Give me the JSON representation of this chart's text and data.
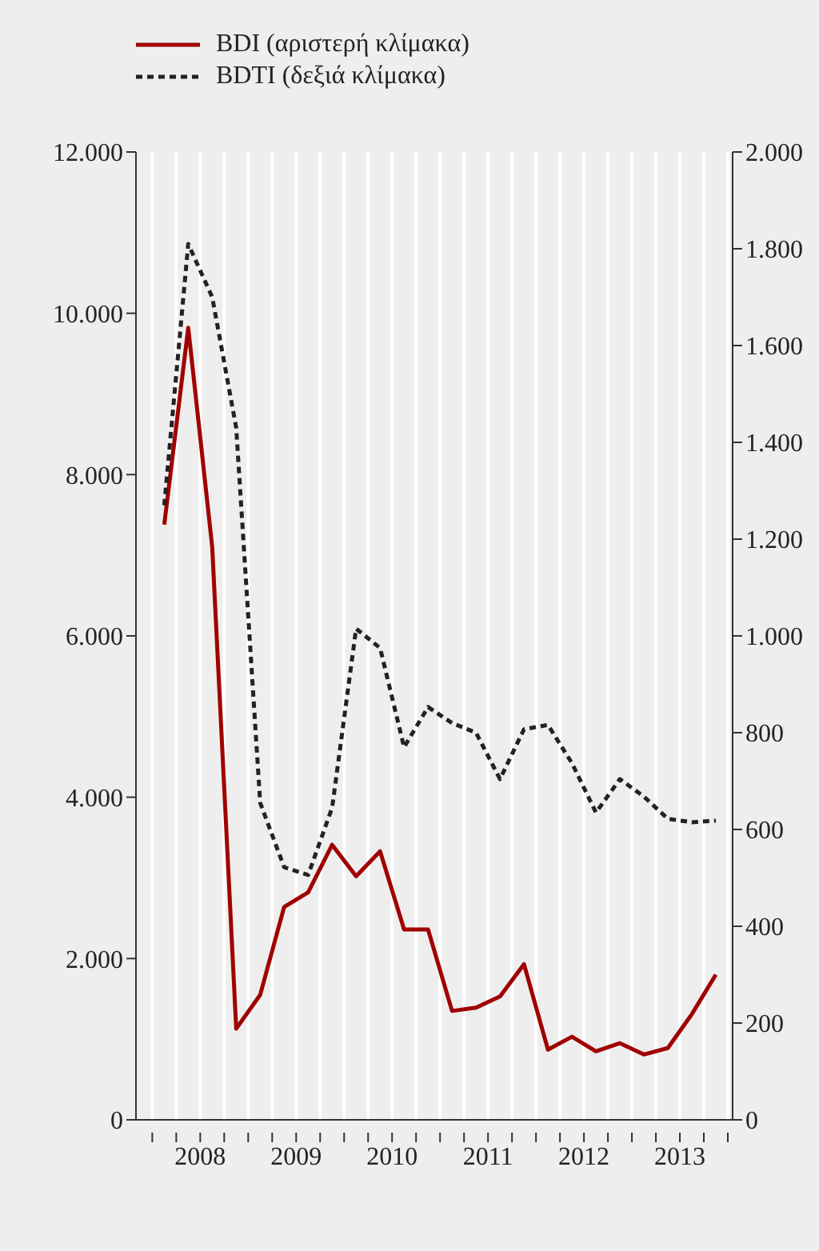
{
  "chart_data": {
    "type": "line",
    "x": [
      2008.125,
      2008.375,
      2008.625,
      2008.875,
      2009.125,
      2009.375,
      2009.625,
      2009.875,
      2010.125,
      2010.375,
      2010.625,
      2010.875,
      2011.125,
      2011.375,
      2011.625,
      2011.875,
      2012.125,
      2012.375,
      2012.625,
      2012.875,
      2013.125,
      2013.375,
      2013.625,
      2013.875
    ],
    "series": [
      {
        "name": "BDI (αριστερή κλίμακα)",
        "color": "#a00000",
        "line_style": "solid",
        "values": [
          7380,
          9820,
          7100,
          1130,
          1550,
          2640,
          2820,
          3410,
          3020,
          3330,
          2360,
          2360,
          1350,
          1390,
          1530,
          1930,
          870,
          1030,
          850,
          950,
          810,
          890,
          1310,
          1800
        ]
      },
      {
        "name": "BDTI (δεξιά κλίμακα)",
        "color": "#222222",
        "line_style": "dashed",
        "axis": "y2",
        "values": [
          1270,
          1810,
          1700,
          1430,
          655,
          522,
          506,
          645,
          1015,
          975,
          770,
          853,
          820,
          800,
          704,
          807,
          816,
          737,
          635,
          704,
          668,
          622,
          615,
          618
        ]
      }
    ],
    "xlim": [
      2007.83,
      2014.05
    ],
    "xticks": [
      {
        "value": 2008,
        "label": null
      },
      {
        "value": 2008.25,
        "label": null
      },
      {
        "value": 2008.5,
        "label": "2008"
      },
      {
        "value": 2008.75,
        "label": null
      },
      {
        "value": 2009,
        "label": null
      },
      {
        "value": 2009.25,
        "label": null
      },
      {
        "value": 2009.5,
        "label": "2009"
      },
      {
        "value": 2009.75,
        "label": null
      },
      {
        "value": 2010,
        "label": null
      },
      {
        "value": 2010.25,
        "label": null
      },
      {
        "value": 2010.5,
        "label": "2010"
      },
      {
        "value": 2010.75,
        "label": null
      },
      {
        "value": 2011,
        "label": null
      },
      {
        "value": 2011.25,
        "label": null
      },
      {
        "value": 2011.5,
        "label": "2011"
      },
      {
        "value": 2011.75,
        "label": null
      },
      {
        "value": 2012,
        "label": null
      },
      {
        "value": 2012.25,
        "label": null
      },
      {
        "value": 2012.5,
        "label": "2012"
      },
      {
        "value": 2012.75,
        "label": null
      },
      {
        "value": 2013,
        "label": null
      },
      {
        "value": 2013.25,
        "label": null
      },
      {
        "value": 2013.5,
        "label": "2013"
      },
      {
        "value": 2013.75,
        "label": null
      },
      {
        "value": 2014,
        "label": null
      }
    ],
    "ylim": [
      0,
      12000
    ],
    "yticks": [
      0,
      {
        "value": 2000,
        "label": "2.000"
      },
      {
        "value": 4000,
        "label": "4.000"
      },
      {
        "value": 6000,
        "label": "6.000"
      },
      {
        "value": 8000,
        "label": "8.000"
      },
      {
        "value": 10000,
        "label": "10.000"
      },
      {
        "value": 12000,
        "label": "12.000"
      }
    ],
    "y2lim": [
      0,
      2000
    ],
    "y2ticks": [
      0,
      200,
      400,
      600,
      800,
      {
        "value": 1000,
        "label": "1.000"
      },
      {
        "value": 1200,
        "label": "1.200"
      },
      {
        "value": 1400,
        "label": "1.400"
      },
      {
        "value": 1600,
        "label": "1.600"
      },
      {
        "value": 1800,
        "label": "1.800"
      },
      {
        "value": 2000,
        "label": "2.000"
      }
    ],
    "grid": "x",
    "legend": "top left"
  }
}
